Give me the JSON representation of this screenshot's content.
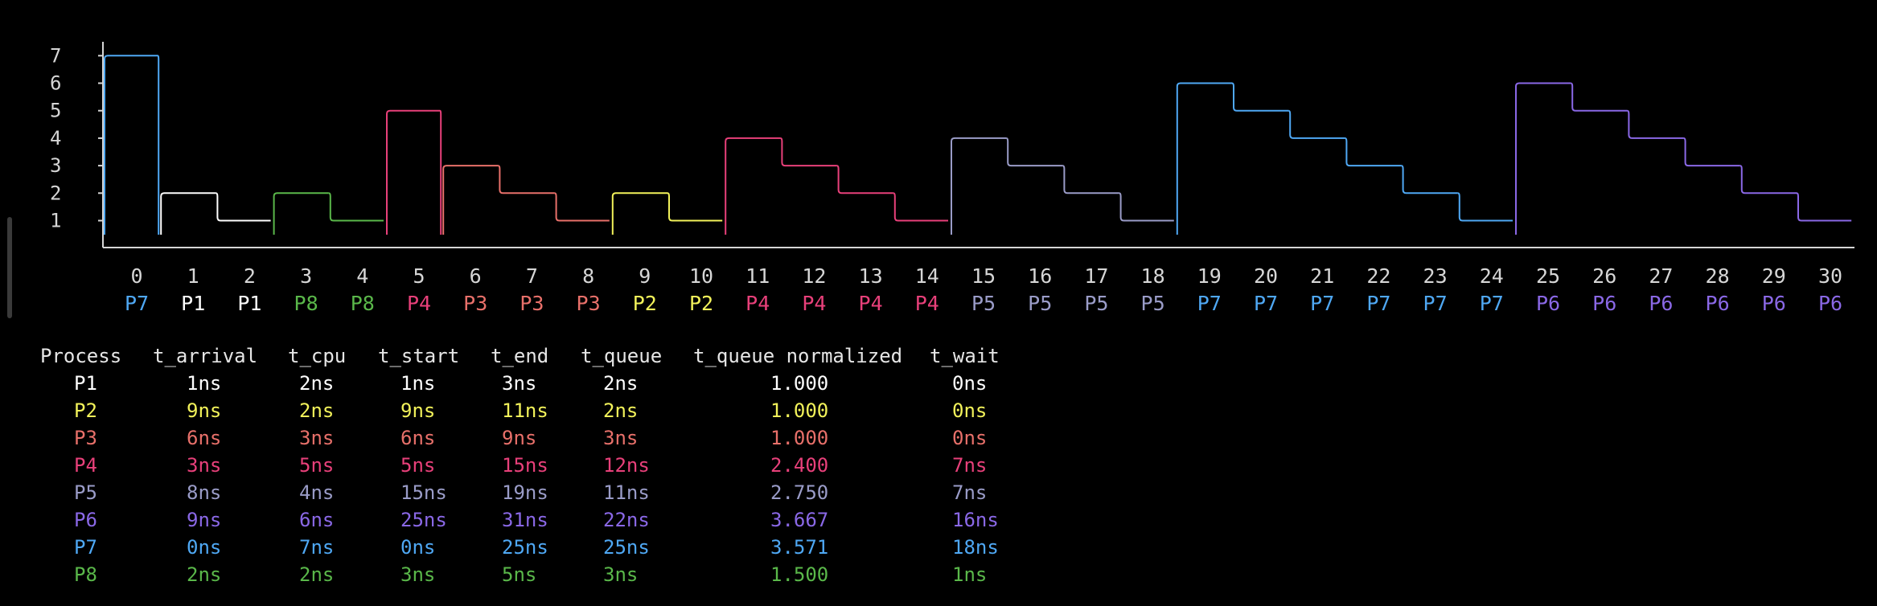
{
  "colors": {
    "background": "#000000",
    "axis": "#d6d6d6",
    "P1": "#ffffff",
    "P2": "#f2f25a",
    "P3": "#e8706a",
    "P4": "#e8407a",
    "P5": "#9a9cc8",
    "P6": "#8a68e6",
    "P7": "#4fa8f4",
    "P8": "#5ab84a"
  },
  "chart_data": {
    "type": "step",
    "y_ticks": [
      "7",
      "6",
      "5",
      "4",
      "3",
      "2",
      "1"
    ],
    "x_ticks": [
      "0",
      "1",
      "2",
      "3",
      "4",
      "5",
      "6",
      "7",
      "8",
      "9",
      "10",
      "11",
      "12",
      "13",
      "14",
      "15",
      "16",
      "17",
      "18",
      "19",
      "20",
      "21",
      "22",
      "23",
      "24",
      "25",
      "26",
      "27",
      "28",
      "29",
      "30"
    ],
    "slot_process": [
      "P7",
      "P1",
      "P1",
      "P8",
      "P8",
      "P4",
      "P3",
      "P3",
      "P3",
      "P2",
      "P2",
      "P4",
      "P4",
      "P4",
      "P4",
      "P5",
      "P5",
      "P5",
      "P5",
      "P7",
      "P7",
      "P7",
      "P7",
      "P7",
      "P7",
      "P6",
      "P6",
      "P6",
      "P6",
      "P6",
      "P6"
    ],
    "remaining_cpu": [
      7,
      2,
      1,
      2,
      1,
      5,
      3,
      2,
      1,
      2,
      1,
      4,
      3,
      2,
      1,
      4,
      3,
      2,
      1,
      6,
      5,
      4,
      3,
      2,
      1,
      6,
      5,
      4,
      3,
      2,
      1
    ]
  },
  "table": {
    "headers": {
      "process": "Process",
      "t_arrival": "t_arrival",
      "t_cpu": "t_cpu",
      "t_start": "t_start",
      "t_end": "t_end",
      "t_queue": "t_queue",
      "t_queue_normalized": "t_queue normalized",
      "t_wait": "t_wait"
    },
    "rows": [
      {
        "process": "P1",
        "t_arrival": "1ns",
        "t_cpu": "2ns",
        "t_start": "1ns",
        "t_end": "3ns",
        "t_queue": "2ns",
        "t_queue_normalized": "1.000",
        "t_wait": "0ns",
        "color": "#ffffff"
      },
      {
        "process": "P2",
        "t_arrival": "9ns",
        "t_cpu": "2ns",
        "t_start": "9ns",
        "t_end": "11ns",
        "t_queue": "2ns",
        "t_queue_normalized": "1.000",
        "t_wait": "0ns",
        "color": "#f2f25a"
      },
      {
        "process": "P3",
        "t_arrival": "6ns",
        "t_cpu": "3ns",
        "t_start": "6ns",
        "t_end": "9ns",
        "t_queue": "3ns",
        "t_queue_normalized": "1.000",
        "t_wait": "0ns",
        "color": "#e8706a"
      },
      {
        "process": "P4",
        "t_arrival": "3ns",
        "t_cpu": "5ns",
        "t_start": "5ns",
        "t_end": "15ns",
        "t_queue": "12ns",
        "t_queue_normalized": "2.400",
        "t_wait": "7ns",
        "color": "#e8407a"
      },
      {
        "process": "P5",
        "t_arrival": "8ns",
        "t_cpu": "4ns",
        "t_start": "15ns",
        "t_end": "19ns",
        "t_queue": "11ns",
        "t_queue_normalized": "2.750",
        "t_wait": "7ns",
        "color": "#9a9cc8"
      },
      {
        "process": "P6",
        "t_arrival": "9ns",
        "t_cpu": "6ns",
        "t_start": "25ns",
        "t_end": "31ns",
        "t_queue": "22ns",
        "t_queue_normalized": "3.667",
        "t_wait": "16ns",
        "color": "#8a68e6"
      },
      {
        "process": "P7",
        "t_arrival": "0ns",
        "t_cpu": "7ns",
        "t_start": "0ns",
        "t_end": "25ns",
        "t_queue": "25ns",
        "t_queue_normalized": "3.571",
        "t_wait": "18ns",
        "color": "#4fa8f4"
      },
      {
        "process": "P8",
        "t_arrival": "2ns",
        "t_cpu": "2ns",
        "t_start": "3ns",
        "t_end": "5ns",
        "t_queue": "3ns",
        "t_queue_normalized": "1.500",
        "t_wait": "1ns",
        "color": "#5ab84a"
      }
    ]
  }
}
